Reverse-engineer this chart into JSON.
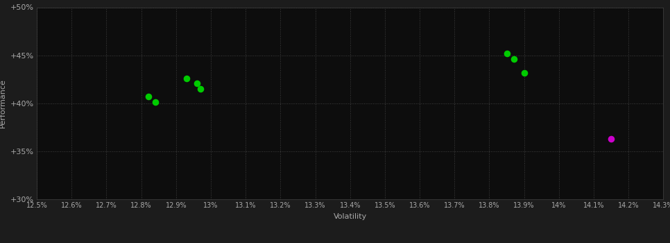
{
  "background_color": "#1c1c1c",
  "plot_bg_color": "#0d0d0d",
  "grid_color": "#404040",
  "axis_label_color": "#aaaaaa",
  "tick_color": "#aaaaaa",
  "xlabel": "Volatility",
  "ylabel": "Performance",
  "xlim": [
    0.125,
    0.143
  ],
  "ylim": [
    0.3,
    0.5
  ],
  "xtick_values": [
    0.125,
    0.126,
    0.127,
    0.128,
    0.129,
    0.13,
    0.131,
    0.132,
    0.133,
    0.134,
    0.135,
    0.136,
    0.137,
    0.138,
    0.139,
    0.14,
    0.141,
    0.142,
    0.143
  ],
  "xtick_labels": [
    "12.5%",
    "12.6%",
    "12.7%",
    "12.8%",
    "12.9%",
    "13%",
    "13.1%",
    "13.2%",
    "13.3%",
    "13.4%",
    "13.5%",
    "13.6%",
    "13.7%",
    "13.8%",
    "13.9%",
    "14%",
    "14.1%",
    "14.2%",
    "14.3%"
  ],
  "ytick_values": [
    0.3,
    0.35,
    0.4,
    0.45,
    0.5
  ],
  "ytick_labels": [
    "+30%",
    "+35%",
    "+40%",
    "+45%",
    "+50%"
  ],
  "green_points": [
    [
      0.1282,
      0.407
    ],
    [
      0.1284,
      0.401
    ],
    [
      0.1293,
      0.426
    ],
    [
      0.1296,
      0.421
    ],
    [
      0.1297,
      0.415
    ],
    [
      0.1385,
      0.452
    ],
    [
      0.1387,
      0.446
    ],
    [
      0.139,
      0.432
    ]
  ],
  "magenta_points": [
    [
      0.1415,
      0.363
    ]
  ],
  "green_color": "#00cc00",
  "magenta_color": "#cc00cc",
  "point_size": 35,
  "tick_fontsize": 7,
  "axis_label_fontsize": 8
}
